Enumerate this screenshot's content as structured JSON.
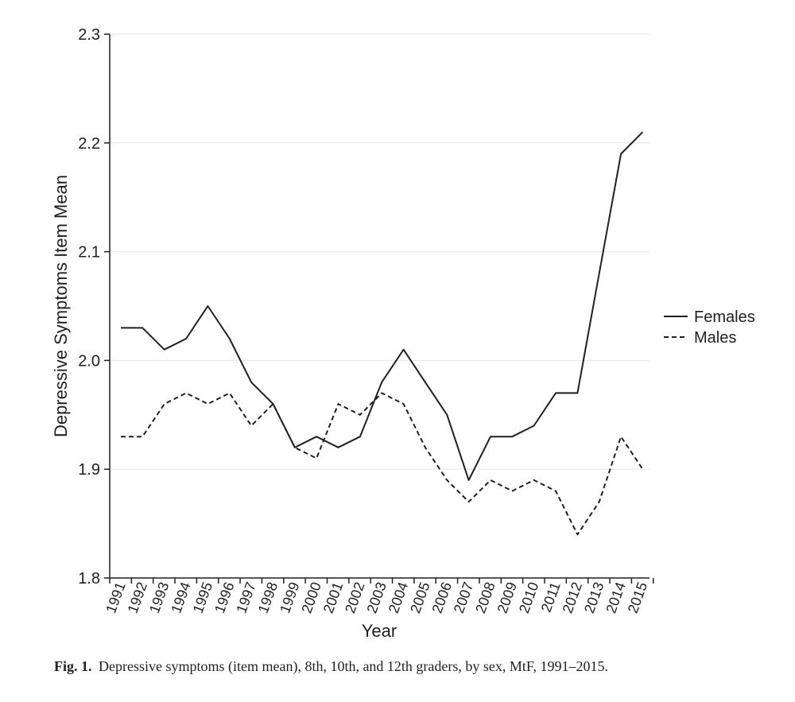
{
  "chart_data": {
    "type": "line",
    "title": "",
    "xlabel": "Year",
    "ylabel": "Depressive Symptoms Item Mean",
    "ylim": [
      1.8,
      2.3
    ],
    "yticks": [
      "1.8",
      "1.9",
      "2.0",
      "2.1",
      "2.2",
      "2.3"
    ],
    "ytick_values": [
      1.8,
      1.9,
      2.0,
      2.1,
      2.2,
      2.3
    ],
    "categories": [
      "1991",
      "1992",
      "1993",
      "1994",
      "1995",
      "1996",
      "1997",
      "1998",
      "1999",
      "2000",
      "2001",
      "2002",
      "2003",
      "2004",
      "2005",
      "2006",
      "2007",
      "2008",
      "2009",
      "2010",
      "2011",
      "2012",
      "2013",
      "2014",
      "2015"
    ],
    "grid": "horizontal",
    "legend_position": "right",
    "series": [
      {
        "name": "Females",
        "style": "solid",
        "values": [
          2.03,
          2.03,
          2.01,
          2.02,
          2.05,
          2.02,
          1.98,
          1.96,
          1.92,
          1.93,
          1.92,
          1.93,
          1.98,
          2.01,
          1.98,
          1.95,
          1.89,
          1.93,
          1.93,
          1.94,
          1.97,
          1.97,
          2.08,
          2.19,
          2.21
        ]
      },
      {
        "name": "Males",
        "style": "dashed",
        "values": [
          1.93,
          1.93,
          1.96,
          1.97,
          1.96,
          1.97,
          1.94,
          1.96,
          1.92,
          1.91,
          1.96,
          1.95,
          1.97,
          1.96,
          1.92,
          1.89,
          1.87,
          1.89,
          1.88,
          1.89,
          1.88,
          1.84,
          1.87,
          1.93,
          1.9
        ]
      }
    ],
    "line_color": "#231f20",
    "grid_color": "#e6e6e6"
  },
  "caption": {
    "label": "Fig. 1.",
    "text": "Depressive symptoms (item mean), 8th, 10th, and 12th graders, by sex, MtF, 1991–2015."
  }
}
